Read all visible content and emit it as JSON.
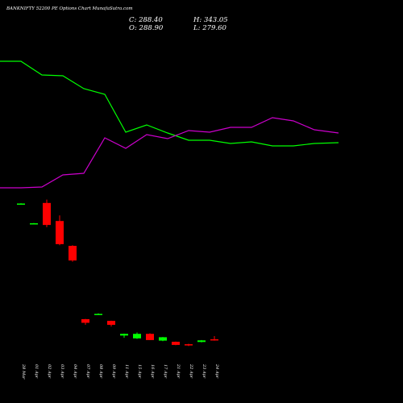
{
  "header": {
    "title": "BANKNIFTY 52200  PE Options  Chart MunafaSutra.com",
    "close": "C: 288.40",
    "open": "O: 288.90",
    "high": "H: 343.05",
    "low": "L: 279.60"
  },
  "chart_data": {
    "type": "candlestick",
    "categories": [
      "28 Mar",
      "01 Apr",
      "02 Apr",
      "03 Apr",
      "04 Apr",
      "07 Apr",
      "08 Apr",
      "09 Apr",
      "11 Apr",
      "15 Apr",
      "16 Apr",
      "17 Apr",
      "21 Apr",
      "22 Apr",
      "23 Apr",
      "24 Apr"
    ],
    "candles": [
      {
        "open": 1375,
        "high": 1378,
        "low": 1371,
        "close": 1375,
        "color": "#00ff00"
      },
      {
        "open": 1200,
        "high": 1203,
        "low": 1195,
        "close": 1200,
        "color": "#00ff00"
      },
      {
        "open": 1380,
        "high": 1410,
        "low": 1165,
        "close": 1185,
        "color": "#ff0000"
      },
      {
        "open": 1220,
        "high": 1270,
        "low": 1005,
        "close": 1015,
        "color": "#ff0000"
      },
      {
        "open": 1000,
        "high": 1005,
        "low": 860,
        "close": 870,
        "color": "#ff0000"
      },
      {
        "open": 350,
        "high": 353,
        "low": 300,
        "close": 318,
        "color": "#ff0000"
      },
      {
        "open": 397,
        "high": 402,
        "low": 393,
        "close": 397,
        "color": "#00ff00"
      },
      {
        "open": 335,
        "high": 337,
        "low": 285,
        "close": 300,
        "color": "#ff0000"
      },
      {
        "open": 205,
        "high": 222,
        "low": 185,
        "close": 220,
        "color": "#00ff00"
      },
      {
        "open": 180,
        "high": 232,
        "low": 175,
        "close": 220,
        "color": "#00ff00"
      },
      {
        "open": 220,
        "high": 225,
        "low": 165,
        "close": 165,
        "color": "#ff0000"
      },
      {
        "open": 160,
        "high": 192,
        "low": 155,
        "close": 190,
        "color": "#00ff00"
      },
      {
        "open": 150,
        "high": 152,
        "low": 120,
        "close": 122,
        "color": "#ff0000"
      },
      {
        "open": 128,
        "high": 132,
        "low": 112,
        "close": 120,
        "color": "#ff0000"
      },
      {
        "open": 148,
        "high": 165,
        "low": 145,
        "close": 162,
        "color": "#00ff00"
      },
      {
        "open": 172,
        "high": 200,
        "low": 160,
        "close": 168,
        "color": "#ff0000"
      }
    ],
    "overlay_series": [
      {
        "color": "#00ff00",
        "values": [
          76,
          76,
          93,
          94,
          110,
          117,
          164,
          155,
          165,
          174,
          174,
          178,
          176,
          181,
          181,
          178
        ]
      },
      {
        "color": "#cc00cc",
        "values": [
          233,
          233,
          232,
          217,
          215,
          171,
          184,
          167,
          172,
          162,
          164,
          158,
          158,
          146,
          150,
          161
        ]
      }
    ],
    "overlay_last_point": [
      {
        "x": 420,
        "y": 177
      },
      {
        "x": 420,
        "y": 165
      }
    ],
    "ylim": [
      0,
      1500
    ],
    "grid": false
  }
}
